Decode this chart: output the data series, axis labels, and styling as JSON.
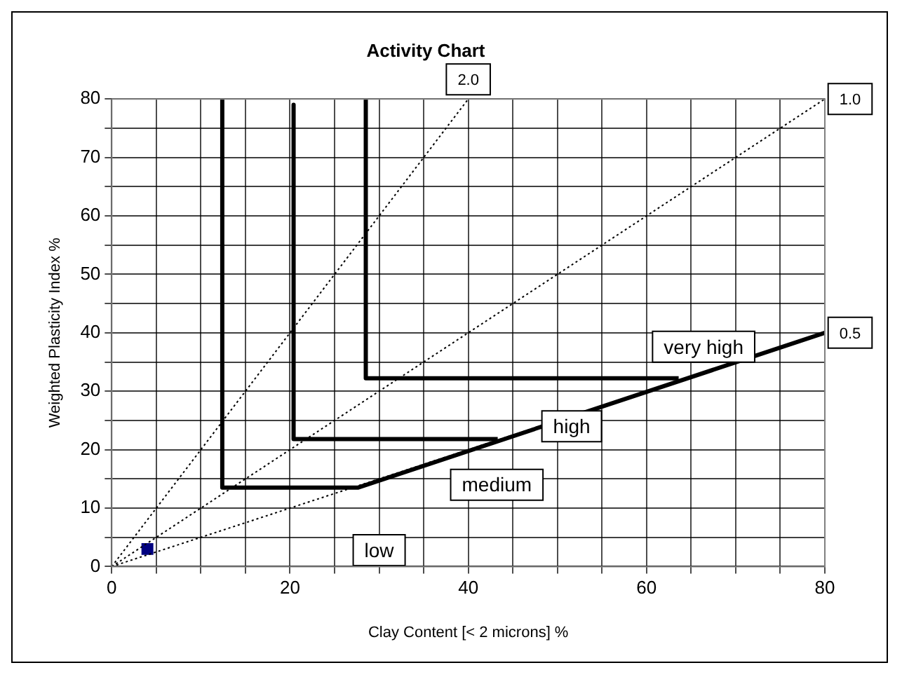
{
  "chart_data": {
    "type": "line",
    "title": "Activity Chart",
    "xlabel": "Clay Content [< 2 microns] %",
    "ylabel": "Weighted Plasticity Index %",
    "xlim": [
      0,
      80
    ],
    "ylim": [
      0,
      80
    ],
    "xticks": [
      0,
      {
        "value": 5,
        "label": null
      },
      {
        "value": 10,
        "label": null
      },
      {
        "value": 15,
        "label": null
      },
      20,
      {
        "value": 25,
        "label": null
      },
      {
        "value": 30,
        "label": null
      },
      {
        "value": 35,
        "label": null
      },
      40,
      {
        "value": 45,
        "label": null
      },
      {
        "value": 50,
        "label": null
      },
      {
        "value": 55,
        "label": null
      },
      60,
      {
        "value": 65,
        "label": null
      },
      {
        "value": 70,
        "label": null
      },
      {
        "value": 75,
        "label": null
      },
      80
    ],
    "yticks": [
      0,
      {
        "value": 5,
        "label": null
      },
      10,
      {
        "value": 15,
        "label": null
      },
      20,
      {
        "value": 25,
        "label": null
      },
      30,
      {
        "value": 35,
        "label": null
      },
      40,
      {
        "value": 45,
        "label": null
      },
      50,
      {
        "value": 55,
        "label": null
      },
      60,
      {
        "value": 65,
        "label": null
      },
      70,
      {
        "value": 75,
        "label": null
      },
      80
    ],
    "grid": true,
    "legend": false,
    "series": [
      {
        "name": "2.0",
        "color": "#000000",
        "line_style": "dotted",
        "marker": "none",
        "x": [
          0,
          40
        ],
        "values": [
          0,
          80
        ]
      },
      {
        "name": "1.0",
        "color": "#000000",
        "line_style": "dotted",
        "marker": "none",
        "x": [
          0,
          80
        ],
        "values": [
          0,
          80
        ]
      },
      {
        "name": "0.5",
        "color": "#000000",
        "line_style": "dotted",
        "marker": "none",
        "x": [
          0,
          80
        ],
        "values": [
          0,
          40
        ]
      },
      {
        "color": "#000000",
        "line_style": "solid",
        "marker": "none",
        "x": [
          12.4,
          12.4,
          27.6,
          80
        ],
        "values": [
          80,
          13.5,
          13.5,
          40
        ]
      },
      {
        "color": "#000000",
        "line_style": "solid",
        "marker": "none",
        "x": [
          20.4,
          20.4,
          43.3
        ],
        "values": [
          79,
          21.8,
          21.8
        ]
      },
      {
        "color": "#000000",
        "line_style": "solid",
        "marker": "none",
        "x": [
          28.5,
          28.5,
          63.6
        ],
        "values": [
          80,
          32.2,
          32.2
        ]
      },
      {
        "type": "scatter",
        "color": "#000080",
        "marker": "square",
        "x": [
          4
        ],
        "values": [
          3
        ]
      }
    ],
    "annotations": [
      "very high",
      "high",
      "medium",
      "low"
    ]
  }
}
